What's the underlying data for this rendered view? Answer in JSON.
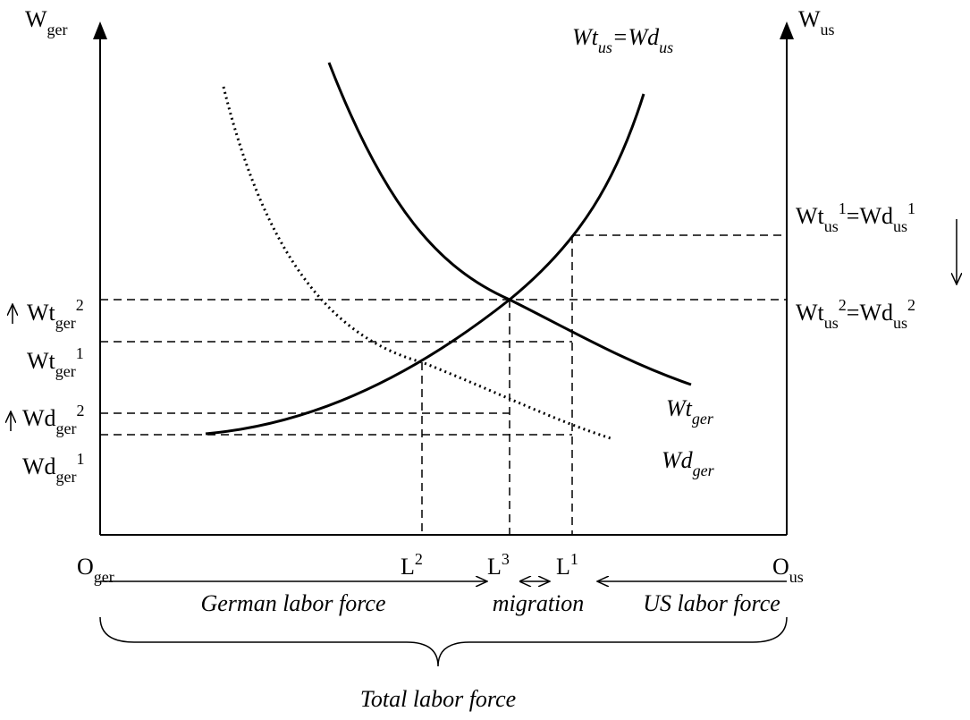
{
  "axis_labels": {
    "w_ger": [
      {
        "text": "W"
      },
      {
        "sub": "ger"
      }
    ],
    "w_us": [
      {
        "text": "W"
      },
      {
        "sub": "us"
      }
    ],
    "o_ger": [
      {
        "text": "O"
      },
      {
        "sub": "ger"
      }
    ],
    "o_us": [
      {
        "text": "O"
      },
      {
        "sub": "us"
      }
    ]
  },
  "curve_labels": {
    "supply": [
      {
        "text": "Wt"
      },
      {
        "sub": "us"
      },
      {
        "text": "=Wd"
      },
      {
        "sub": "us"
      }
    ],
    "wt_ger": [
      {
        "text": "Wt"
      },
      {
        "sub": "ger"
      }
    ],
    "wd_ger": [
      {
        "text": "Wd"
      },
      {
        "sub": "ger"
      }
    ]
  },
  "wage_labels": {
    "wt_us_1": [
      {
        "text": "Wt"
      },
      {
        "sub": "us"
      },
      {
        "sup": "1"
      },
      {
        "text": "=Wd"
      },
      {
        "sub": "us"
      },
      {
        "sup": "1"
      }
    ],
    "wt_us_2": [
      {
        "text": "Wt"
      },
      {
        "sub": "us"
      },
      {
        "sup": "2"
      },
      {
        "text": "=Wd"
      },
      {
        "sub": "us"
      },
      {
        "sup": "2"
      }
    ],
    "wt_ger_2": [
      {
        "text": "Wt"
      },
      {
        "sub": "ger"
      },
      {
        "sup": "2"
      }
    ],
    "wt_ger_1": [
      {
        "text": "Wt"
      },
      {
        "sub": "ger"
      },
      {
        "sup": "1"
      }
    ],
    "wd_ger_2": [
      {
        "text": "Wd"
      },
      {
        "sub": "ger"
      },
      {
        "sup": "2"
      }
    ],
    "wd_ger_1": [
      {
        "text": "Wd"
      },
      {
        "sub": "ger"
      },
      {
        "sup": "1"
      }
    ]
  },
  "quantity_labels": {
    "l2": [
      {
        "text": "L"
      },
      {
        "sup": "2"
      }
    ],
    "l3": [
      {
        "text": "L"
      },
      {
        "sup": "3"
      }
    ],
    "l1": [
      {
        "text": "L"
      },
      {
        "sup": "1"
      }
    ]
  },
  "bottom_labels": {
    "german": "German labor force",
    "migration": "migration",
    "us": "US labor force",
    "total": "Total labor force"
  }
}
